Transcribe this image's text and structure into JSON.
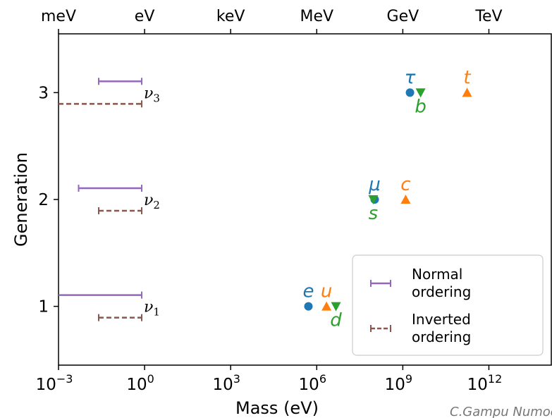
{
  "chart_data": {
    "type": "scatter",
    "title": "",
    "xlabel": "Mass (eV)",
    "ylabel": "Generation",
    "x_scale": "log10",
    "xlim_log10": [
      -3,
      14.2
    ],
    "ylim": [
      0.45,
      3.55
    ],
    "x_ticks": [
      {
        "exp": -3,
        "label": "10",
        "sup": "−3"
      },
      {
        "exp": 0,
        "label": "10",
        "sup": "0"
      },
      {
        "exp": 3,
        "label": "10",
        "sup": "3"
      },
      {
        "exp": 6,
        "label": "10",
        "sup": "6"
      },
      {
        "exp": 9,
        "label": "10",
        "sup": "9"
      },
      {
        "exp": 12,
        "label": "10",
        "sup": "12"
      }
    ],
    "y_ticks": [
      {
        "value": 1,
        "label": "1"
      },
      {
        "value": 2,
        "label": "2"
      },
      {
        "value": 3,
        "label": "3"
      }
    ],
    "top_axis_labels": [
      {
        "exp": -3,
        "label": "meV"
      },
      {
        "exp": 0,
        "label": "eV"
      },
      {
        "exp": 3,
        "label": "keV"
      },
      {
        "exp": 6,
        "label": "MeV"
      },
      {
        "exp": 9,
        "label": "GeV"
      },
      {
        "exp": 12,
        "label": "TeV"
      }
    ],
    "colors": {
      "lepton": "#1f77b4",
      "up_quark": "#ff7f0e",
      "down_quark": "#2ca02c",
      "normal": "#9467bd",
      "inverted": "#8c564b"
    },
    "particles": [
      {
        "symbol": "e",
        "kind": "lepton",
        "mass_log10": 5.71,
        "generation": 1,
        "marker": "circle"
      },
      {
        "symbol": "u",
        "kind": "up_quark",
        "mass_log10": 6.34,
        "generation": 1,
        "marker": "triangle-up"
      },
      {
        "symbol": "d",
        "kind": "down_quark",
        "mass_log10": 6.67,
        "generation": 1,
        "marker": "triangle-down"
      },
      {
        "symbol": "μ",
        "kind": "lepton",
        "mass_log10": 8.02,
        "generation": 2,
        "marker": "circle"
      },
      {
        "symbol": "s",
        "kind": "down_quark",
        "mass_log10": 7.97,
        "generation": 2,
        "marker": "triangle-down"
      },
      {
        "symbol": "c",
        "kind": "up_quark",
        "mass_log10": 9.1,
        "generation": 2,
        "marker": "triangle-up"
      },
      {
        "symbol": "τ",
        "kind": "lepton",
        "mass_log10": 9.25,
        "generation": 3,
        "marker": "circle"
      },
      {
        "symbol": "b",
        "kind": "down_quark",
        "mass_log10": 9.62,
        "generation": 3,
        "marker": "triangle-down"
      },
      {
        "symbol": "t",
        "kind": "up_quark",
        "mass_log10": 11.24,
        "generation": 3,
        "marker": "triangle-up"
      }
    ],
    "neutrinos": [
      {
        "label": "ν",
        "sub": "1",
        "generation": 1,
        "normal_log10": [
          -3.0,
          -0.1
        ],
        "inverted_log10": [
          -1.6,
          -0.1
        ]
      },
      {
        "label": "ν",
        "sub": "2",
        "generation": 2,
        "normal_log10": [
          -2.3,
          -0.1
        ],
        "inverted_log10": [
          -1.6,
          -0.1
        ]
      },
      {
        "label": "ν",
        "sub": "3",
        "generation": 3,
        "normal_log10": [
          -1.6,
          -0.1
        ],
        "inverted_log10": [
          -3.0,
          -0.1
        ]
      }
    ],
    "legend": {
      "placement": "lower-right",
      "entries": [
        {
          "line1": "Normal",
          "line2": "ordering",
          "style": "solid",
          "color_key": "normal"
        },
        {
          "line1": "Inverted",
          "line2": "ordering",
          "style": "dashed",
          "color_key": "inverted"
        }
      ]
    }
  },
  "watermark": "C.Gampu Numoee"
}
